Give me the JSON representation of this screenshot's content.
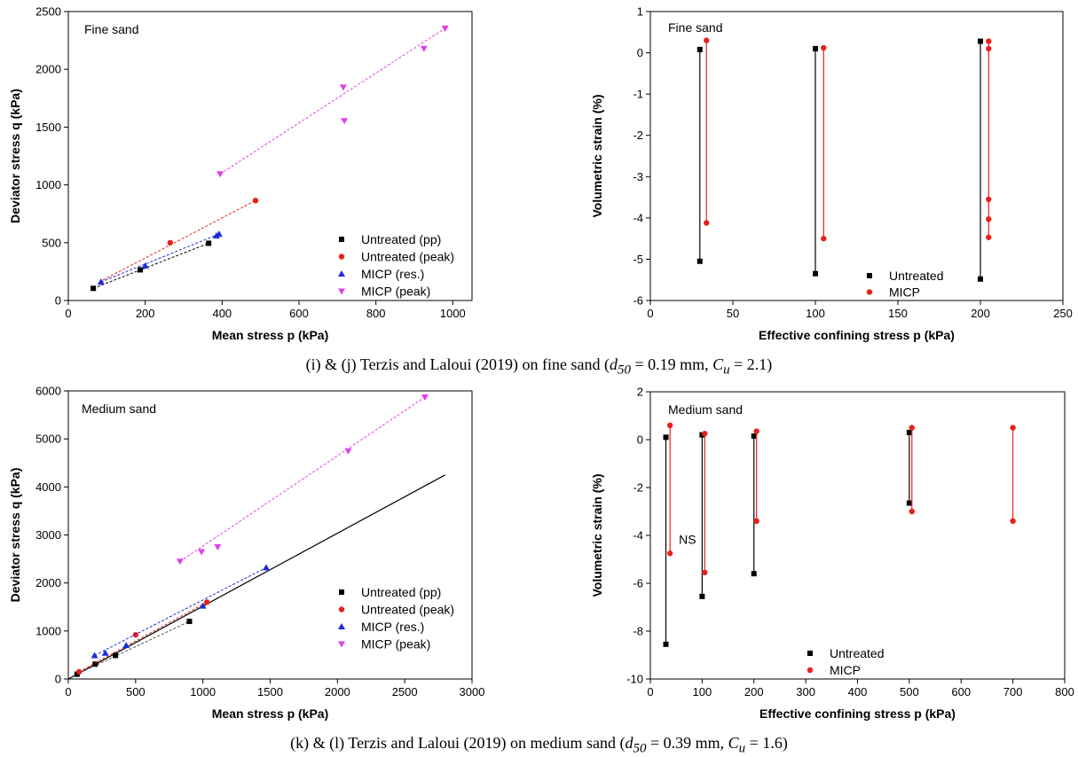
{
  "captions": {
    "top": {
      "pre": "(i) & (j) Terzis and Laloui (2019) on fine sand (",
      "d_sym": "d",
      "d_sub": "50",
      "d_val": " = 0.19 mm, ",
      "c_sym": "C",
      "c_sub": "u",
      "c_val": " = 2.1)"
    },
    "bottom": {
      "pre": "(k) & (l) Terzis and Laloui (2019) on medium sand (",
      "d_sym": "d",
      "d_sub": "50",
      "d_val": " = 0.39 mm, ",
      "c_sym": "C",
      "c_sub": "u",
      "c_val": " = 1.6)"
    }
  },
  "chart_data": [
    {
      "id": "i",
      "type": "scatter",
      "title": "Fine sand",
      "xlabel": "Mean stress p (kPa)",
      "ylabel": "Deviator stress q (kPa)",
      "xlim": [
        0,
        1050
      ],
      "ylim": [
        0,
        2500
      ],
      "xticks": [
        0,
        200,
        400,
        600,
        800,
        1000
      ],
      "yticks": [
        0,
        500,
        1000,
        1500,
        2000,
        2500
      ],
      "legend_position": "bottom-right",
      "series": [
        {
          "name": "Untreated (pp)",
          "marker": "square",
          "color": "#000000",
          "points": [
            [
              65,
              105
            ],
            [
              187,
              265
            ],
            [
              365,
              495
            ]
          ],
          "fit": [
            [
              65,
              105
            ],
            [
              365,
              495
            ]
          ],
          "fit_color": "#000000"
        },
        {
          "name": "Untreated (peak)",
          "marker": "circle",
          "color": "#e8201b",
          "points": [
            [
              265,
              500
            ],
            [
              487,
              865
            ]
          ],
          "fit": [
            [
              80,
              160
            ],
            [
              487,
              865
            ]
          ],
          "fit_color": "#e8201b"
        },
        {
          "name": "MICP (res.)",
          "marker": "triangle-up",
          "color": "#1f2bd8",
          "points": [
            [
              85,
              160
            ],
            [
              200,
              300
            ],
            [
              385,
              560
            ],
            [
              392,
              575
            ]
          ],
          "fit": [
            [
              85,
              160
            ],
            [
              392,
              575
            ]
          ],
          "fit_color": "#1f2bd8"
        },
        {
          "name": "MICP (peak)",
          "marker": "triangle-down",
          "color": "#e040e8",
          "points": [
            [
              395,
              1095
            ],
            [
              715,
              1845
            ],
            [
              718,
              1555
            ],
            [
              925,
              2180
            ],
            [
              980,
              2355
            ]
          ],
          "fit": [
            [
              395,
              1095
            ],
            [
              980,
              2355
            ]
          ],
          "fit_color": "#e040e8"
        }
      ]
    },
    {
      "id": "j",
      "type": "scatter",
      "title": "Fine sand",
      "xlabel": "Effective confining stress p (kPa)",
      "ylabel": "Volumetric strain (%)",
      "xlim": [
        0,
        250
      ],
      "ylim": [
        -6,
        1
      ],
      "xticks": [
        0,
        50,
        100,
        150,
        200,
        250
      ],
      "yticks": [
        -6,
        -5,
        -4,
        -3,
        -2,
        -1,
        0,
        1
      ],
      "legend_position": "bottom-right",
      "series": [
        {
          "name": "Untreated",
          "marker": "square",
          "color": "#000000",
          "points": [
            [
              30,
              0.08
            ],
            [
              30,
              -5.05
            ],
            [
              100,
              0.1
            ],
            [
              100,
              -5.35
            ],
            [
              200,
              0.28
            ],
            [
              200,
              -5.48
            ]
          ],
          "segments": [
            [
              [
                30,
                0.08
              ],
              [
                30,
                -5.05
              ]
            ],
            [
              [
                100,
                0.1
              ],
              [
                100,
                -5.35
              ]
            ],
            [
              [
                200,
                0.28
              ],
              [
                200,
                -5.48
              ]
            ]
          ]
        },
        {
          "name": "MICP",
          "marker": "circle",
          "color": "#e8201b",
          "points": [
            [
              34,
              0.3
            ],
            [
              34,
              -4.12
            ],
            [
              105,
              0.12
            ],
            [
              105,
              -4.5
            ],
            [
              205,
              0.28
            ],
            [
              205,
              0.1
            ],
            [
              205,
              -3.55
            ],
            [
              205,
              -4.03
            ],
            [
              205,
              -4.47
            ]
          ],
          "segments": [
            [
              [
                34,
                0.3
              ],
              [
                34,
                -4.12
              ]
            ],
            [
              [
                105,
                0.12
              ],
              [
                105,
                -4.5
              ]
            ],
            [
              [
                205,
                0.28
              ],
              [
                205,
                -4.47
              ]
            ]
          ]
        }
      ]
    },
    {
      "id": "k",
      "type": "scatter",
      "title": "Medium sand",
      "xlabel": "Mean stress p (kPa)",
      "ylabel": "Deviator stress q (kPa)",
      "xlim": [
        0,
        3000
      ],
      "ylim": [
        0,
        6000
      ],
      "xticks": [
        0,
        500,
        1000,
        1500,
        2000,
        2500,
        3000
      ],
      "yticks": [
        0,
        1000,
        2000,
        3000,
        4000,
        5000,
        6000
      ],
      "legend_position": "bottom-right",
      "reference_line": {
        "points": [
          [
            0,
            0
          ],
          [
            2800,
            4250
          ]
        ],
        "color": "#000000"
      },
      "series": [
        {
          "name": "Untreated (pp)",
          "marker": "square",
          "color": "#000000",
          "points": [
            [
              65,
              100
            ],
            [
              200,
              310
            ],
            [
              350,
              490
            ],
            [
              900,
              1200
            ]
          ],
          "fit": [
            [
              65,
              100
            ],
            [
              900,
              1200
            ]
          ],
          "fit_color": "#555555"
        },
        {
          "name": "Untreated (peak)",
          "marker": "circle",
          "color": "#e8201b",
          "points": [
            [
              80,
              150
            ],
            [
              500,
              920
            ],
            [
              1030,
              1600
            ]
          ],
          "fit": [
            [
              80,
              150
            ],
            [
              1030,
              1600
            ]
          ],
          "fit_color": "#e8201b"
        },
        {
          "name": "MICP (res.)",
          "marker": "triangle-up",
          "color": "#1f2bd8",
          "points": [
            [
              195,
              490
            ],
            [
              275,
              540
            ],
            [
              430,
              700
            ],
            [
              1000,
              1520
            ],
            [
              1470,
              2320
            ]
          ],
          "fit": [
            [
              195,
              490
            ],
            [
              1470,
              2320
            ]
          ],
          "fit_color": "#1f2bd8"
        },
        {
          "name": "MICP (peak)",
          "marker": "triangle-down",
          "color": "#e040e8",
          "points": [
            [
              830,
              2450
            ],
            [
              990,
              2650
            ],
            [
              1110,
              2750
            ],
            [
              2080,
              4750
            ],
            [
              2650,
              5870
            ]
          ],
          "fit": [
            [
              830,
              2450
            ],
            [
              2650,
              5870
            ]
          ],
          "fit_color": "#e040e8"
        }
      ]
    },
    {
      "id": "l",
      "type": "scatter",
      "title": "Medium sand",
      "annotation": "NS",
      "xlabel": "Effective confining stress p (kPa)",
      "ylabel": "Volumetric strain (%)",
      "xlim": [
        0,
        800
      ],
      "ylim": [
        -10,
        2
      ],
      "xticks": [
        0,
        100,
        200,
        300,
        400,
        500,
        600,
        700,
        800
      ],
      "yticks": [
        -10,
        -8,
        -6,
        -4,
        -2,
        0,
        2
      ],
      "legend_position": "bottom-center",
      "series": [
        {
          "name": "Untreated",
          "marker": "square",
          "color": "#000000",
          "points": [
            [
              30,
              0.1
            ],
            [
              30,
              -8.55
            ],
            [
              100,
              0.2
            ],
            [
              100,
              -6.55
            ],
            [
              200,
              0.15
            ],
            [
              200,
              -5.6
            ],
            [
              500,
              0.3
            ],
            [
              500,
              -2.65
            ]
          ],
          "segments": [
            [
              [
                30,
                0.1
              ],
              [
                30,
                -8.55
              ]
            ],
            [
              [
                100,
                0.2
              ],
              [
                100,
                -6.55
              ]
            ],
            [
              [
                200,
                0.15
              ],
              [
                200,
                -5.6
              ]
            ],
            [
              [
                500,
                0.3
              ],
              [
                500,
                -2.65
              ]
            ]
          ]
        },
        {
          "name": "MICP",
          "marker": "circle",
          "color": "#e8201b",
          "points": [
            [
              38,
              0.6
            ],
            [
              38,
              -4.75
            ],
            [
              105,
              0.25
            ],
            [
              105,
              -5.55
            ],
            [
              205,
              0.35
            ],
            [
              205,
              -3.4
            ],
            [
              505,
              0.5
            ],
            [
              505,
              -3.0
            ],
            [
              700,
              0.5
            ],
            [
              700,
              -3.4
            ]
          ],
          "segments": [
            [
              [
                38,
                0.6
              ],
              [
                38,
                -4.75
              ]
            ],
            [
              [
                105,
                0.25
              ],
              [
                105,
                -5.55
              ]
            ],
            [
              [
                205,
                0.35
              ],
              [
                205,
                -3.4
              ]
            ],
            [
              [
                505,
                0.5
              ],
              [
                505,
                -3.0
              ]
            ],
            [
              [
                700,
                0.5
              ],
              [
                700,
                -3.4
              ]
            ]
          ]
        }
      ]
    }
  ]
}
